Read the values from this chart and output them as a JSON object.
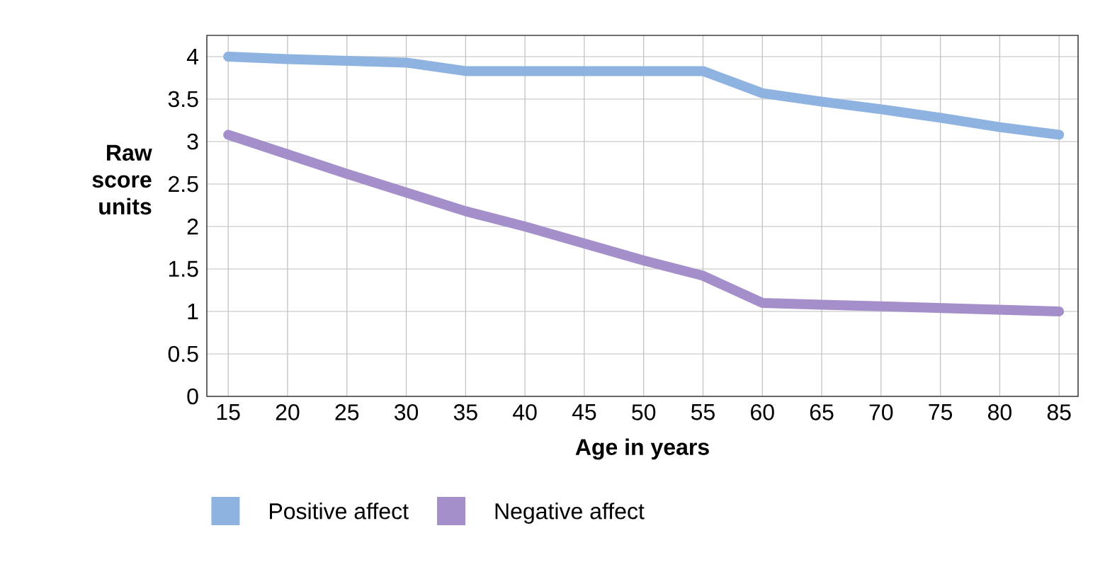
{
  "chart_data": {
    "type": "line",
    "xlabel": "Age in years",
    "ylabel": "Raw score units",
    "x": [
      15,
      20,
      25,
      30,
      35,
      40,
      45,
      50,
      55,
      60,
      65,
      70,
      75,
      80,
      85
    ],
    "series": [
      {
        "name": "Positive affect",
        "color": "#8fb3e0",
        "values": [
          4.0,
          3.97,
          3.95,
          3.93,
          3.83,
          3.83,
          3.83,
          3.83,
          3.83,
          3.57,
          3.47,
          3.38,
          3.28,
          3.17,
          3.08
        ]
      },
      {
        "name": "Negative affect",
        "color": "#a58fcb",
        "values": [
          3.08,
          2.85,
          2.62,
          2.4,
          2.18,
          2.0,
          1.8,
          1.6,
          1.42,
          1.1,
          1.08,
          1.06,
          1.04,
          1.02,
          1.0
        ]
      }
    ],
    "xlim": [
      13.2,
      86.6
    ],
    "ylim": [
      0,
      4.25
    ],
    "xticks": [
      15,
      20,
      25,
      30,
      35,
      40,
      45,
      50,
      55,
      60,
      65,
      70,
      75,
      80,
      85
    ],
    "yticks": [
      0,
      0.5,
      1,
      1.5,
      2,
      2.5,
      3,
      3.5,
      4
    ],
    "grid": true,
    "legend": "bottom",
    "marker": "none",
    "line_style": "solid"
  }
}
